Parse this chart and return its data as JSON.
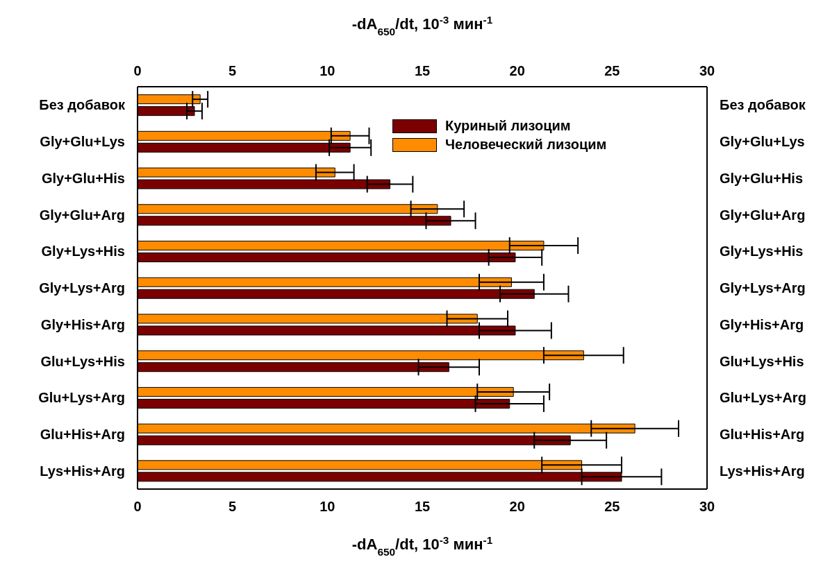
{
  "chart_data": {
    "type": "bar",
    "orientation": "horizontal",
    "xlabel": "-dA$_{650}$/dt, 10$^{-3}$ мин$^{-1}$",
    "x2label": "-dA$_{650}$/dt, 10$^{-3}$ мин$^{-1}$",
    "categories": [
      "Без добавок",
      "Gly+Glu+Lys",
      "Gly+Glu+His",
      "Gly+Glu+Arg",
      "Gly+Lys+His",
      "Gly+Lys+Arg",
      "Gly+His+Arg",
      "Glu+Lys+His",
      "Glu+Lys+Arg",
      "Glu+His+Arg",
      "Lys+His+Arg"
    ],
    "series": [
      {
        "name": "Куриный лизоцим",
        "color": "#7b0000",
        "values": [
          3.0,
          11.2,
          13.3,
          16.5,
          19.9,
          20.9,
          19.9,
          16.4,
          19.6,
          22.8,
          25.5
        ],
        "errors": [
          0.4,
          1.1,
          1.2,
          1.3,
          1.4,
          1.8,
          1.9,
          1.6,
          1.8,
          1.9,
          2.1
        ]
      },
      {
        "name": "Человеческий лизоцим",
        "color": "#ff8c00",
        "values": [
          3.3,
          11.2,
          10.4,
          15.8,
          21.4,
          19.7,
          17.9,
          23.5,
          19.8,
          26.2,
          23.4
        ],
        "errors": [
          0.4,
          1.0,
          1.0,
          1.4,
          1.8,
          1.7,
          1.6,
          2.1,
          1.9,
          2.3,
          2.1
        ]
      }
    ],
    "xlim": [
      0,
      30
    ],
    "xticks": [
      0,
      5,
      10,
      15,
      20,
      25,
      30
    ],
    "x2lim": [
      0,
      30
    ],
    "x2ticks": [
      0,
      5,
      10,
      15,
      20,
      25,
      30
    ],
    "grid": false,
    "legend": "top right"
  }
}
